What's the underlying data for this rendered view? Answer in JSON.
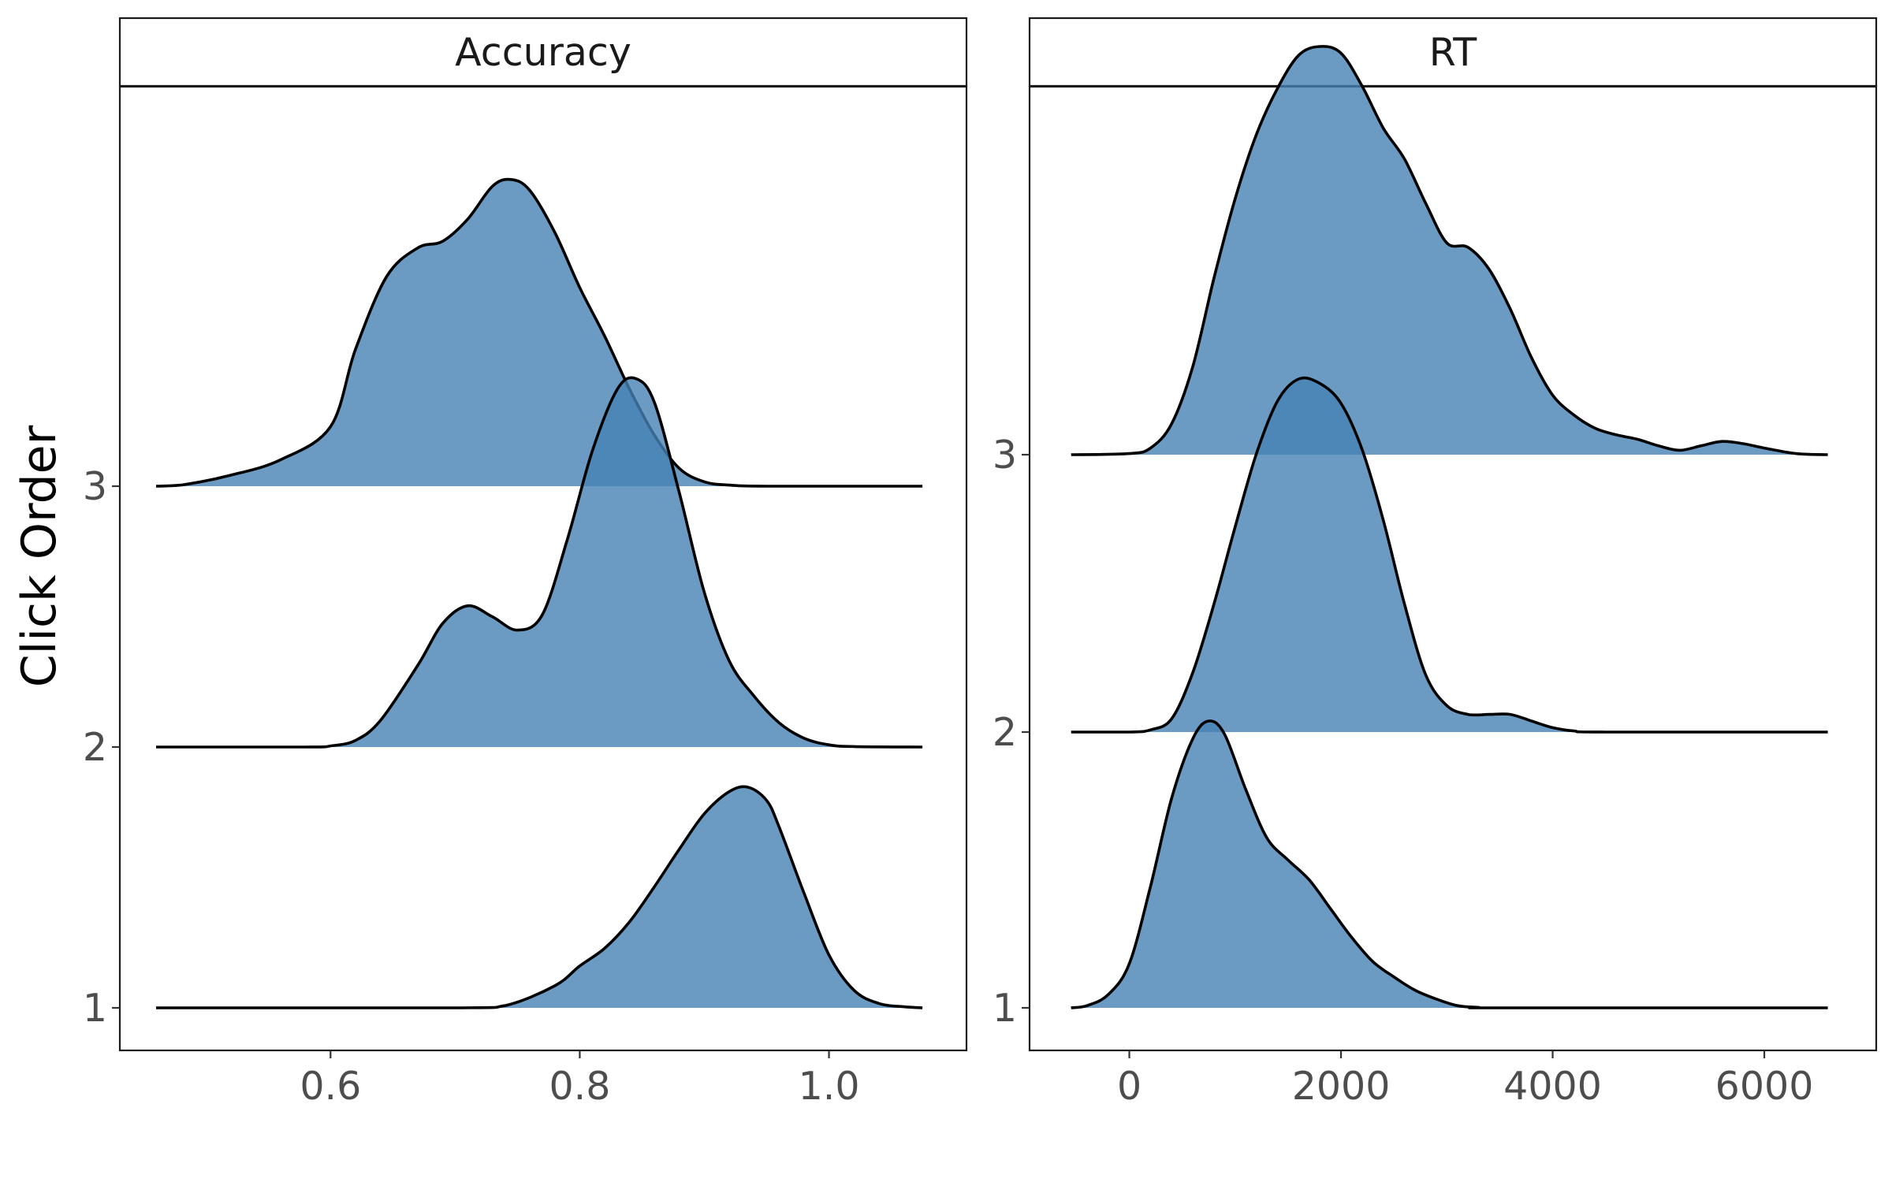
{
  "chart_data": {
    "type": "area",
    "ylabel": "Click Order",
    "y_categories": [
      "1",
      "2",
      "3"
    ],
    "fill_color": "#4682b4",
    "fill_opacity": 0.8,
    "line_color": "#000000",
    "panels": [
      {
        "strip": "Accuracy",
        "xlim": [
          0.46,
          1.08
        ],
        "xticks": [
          0.6,
          0.8,
          1.0
        ],
        "xtick_labels": [
          "0.6",
          "0.8",
          "1.0"
        ],
        "series": [
          {
            "name": "1",
            "density": [
              [
                0.46,
                0
              ],
              [
                0.7,
                0
              ],
              [
                0.74,
                0.01
              ],
              [
                0.78,
                0.1
              ],
              [
                0.8,
                0.19
              ],
              [
                0.82,
                0.27
              ],
              [
                0.84,
                0.39
              ],
              [
                0.86,
                0.55
              ],
              [
                0.88,
                0.72
              ],
              [
                0.9,
                0.88
              ],
              [
                0.92,
                0.98
              ],
              [
                0.935,
                1.0
              ],
              [
                0.95,
                0.94
              ],
              [
                0.96,
                0.82
              ],
              [
                0.98,
                0.52
              ],
              [
                1.0,
                0.24
              ],
              [
                1.02,
                0.08
              ],
              [
                1.04,
                0.02
              ],
              [
                1.06,
                0.005
              ],
              [
                1.075,
                0
              ]
            ]
          },
          {
            "name": "2",
            "density": [
              [
                0.46,
                0
              ],
              [
                0.58,
                0
              ],
              [
                0.6,
                0.005
              ],
              [
                0.62,
                0.03
              ],
              [
                0.64,
                0.12
              ],
              [
                0.67,
                0.37
              ],
              [
                0.69,
                0.56
              ],
              [
                0.71,
                0.64
              ],
              [
                0.73,
                0.59
              ],
              [
                0.75,
                0.53
              ],
              [
                0.77,
                0.6
              ],
              [
                0.79,
                0.94
              ],
              [
                0.81,
                1.34
              ],
              [
                0.83,
                1.62
              ],
              [
                0.845,
                1.67
              ],
              [
                0.86,
                1.56
              ],
              [
                0.88,
                1.15
              ],
              [
                0.9,
                0.7
              ],
              [
                0.92,
                0.39
              ],
              [
                0.94,
                0.23
              ],
              [
                0.96,
                0.11
              ],
              [
                0.98,
                0.04
              ],
              [
                1.0,
                0.01
              ],
              [
                1.02,
                0.002
              ],
              [
                1.075,
                0
              ]
            ]
          },
          {
            "name": "3",
            "density": [
              [
                0.46,
                0
              ],
              [
                0.48,
                0.005
              ],
              [
                0.52,
                0.05
              ],
              [
                0.56,
                0.12
              ],
              [
                0.6,
                0.27
              ],
              [
                0.62,
                0.62
              ],
              [
                0.645,
                0.95
              ],
              [
                0.67,
                1.08
              ],
              [
                0.69,
                1.11
              ],
              [
                0.71,
                1.21
              ],
              [
                0.73,
                1.36
              ],
              [
                0.745,
                1.39
              ],
              [
                0.76,
                1.34
              ],
              [
                0.78,
                1.15
              ],
              [
                0.8,
                0.9
              ],
              [
                0.82,
                0.68
              ],
              [
                0.84,
                0.44
              ],
              [
                0.86,
                0.23
              ],
              [
                0.88,
                0.08
              ],
              [
                0.9,
                0.02
              ],
              [
                0.92,
                0.005
              ],
              [
                0.95,
                0
              ],
              [
                1.075,
                0
              ]
            ]
          }
        ]
      },
      {
        "strip": "RT",
        "xlim": [
          -600,
          6700
        ],
        "xticks": [
          0,
          2000,
          4000,
          6000
        ],
        "xtick_labels": [
          "0",
          "2000",
          "4000",
          "6000"
        ],
        "series": [
          {
            "name": "1",
            "density": [
              [
                -550,
                0
              ],
              [
                -400,
                0.01
              ],
              [
                -200,
                0.06
              ],
              [
                0,
                0.2
              ],
              [
                200,
                0.55
              ],
              [
                400,
                0.95
              ],
              [
                600,
                1.22
              ],
              [
                750,
                1.3
              ],
              [
                900,
                1.24
              ],
              [
                1100,
                0.99
              ],
              [
                1300,
                0.77
              ],
              [
                1500,
                0.67
              ],
              [
                1700,
                0.58
              ],
              [
                1900,
                0.45
              ],
              [
                2100,
                0.32
              ],
              [
                2300,
                0.21
              ],
              [
                2500,
                0.14
              ],
              [
                2700,
                0.08
              ],
              [
                2900,
                0.04
              ],
              [
                3100,
                0.01
              ],
              [
                3300,
                0.002
              ],
              [
                3500,
                0
              ],
              [
                6600,
                0
              ]
            ]
          },
          {
            "name": "2",
            "density": [
              [
                -550,
                0
              ],
              [
                0,
                0
              ],
              [
                200,
                0.01
              ],
              [
                400,
                0.06
              ],
              [
                600,
                0.27
              ],
              [
                800,
                0.58
              ],
              [
                1000,
                0.93
              ],
              [
                1200,
                1.26
              ],
              [
                1400,
                1.5
              ],
              [
                1600,
                1.6
              ],
              [
                1800,
                1.58
              ],
              [
                2000,
                1.49
              ],
              [
                2200,
                1.28
              ],
              [
                2400,
                0.96
              ],
              [
                2600,
                0.58
              ],
              [
                2800,
                0.26
              ],
              [
                3000,
                0.12
              ],
              [
                3200,
                0.08
              ],
              [
                3400,
                0.08
              ],
              [
                3600,
                0.08
              ],
              [
                3800,
                0.05
              ],
              [
                4000,
                0.02
              ],
              [
                4200,
                0.005
              ],
              [
                4500,
                0
              ],
              [
                6600,
                0
              ]
            ]
          },
          {
            "name": "3",
            "density": [
              [
                -550,
                0
              ],
              [
                0,
                0.005
              ],
              [
                200,
                0.03
              ],
              [
                400,
                0.14
              ],
              [
                600,
                0.4
              ],
              [
                800,
                0.8
              ],
              [
                1000,
                1.16
              ],
              [
                1200,
                1.45
              ],
              [
                1400,
                1.66
              ],
              [
                1600,
                1.81
              ],
              [
                1800,
                1.85
              ],
              [
                2000,
                1.82
              ],
              [
                2200,
                1.67
              ],
              [
                2400,
                1.48
              ],
              [
                2600,
                1.34
              ],
              [
                2800,
                1.14
              ],
              [
                3000,
                0.96
              ],
              [
                3200,
                0.94
              ],
              [
                3400,
                0.84
              ],
              [
                3600,
                0.66
              ],
              [
                3800,
                0.44
              ],
              [
                4000,
                0.27
              ],
              [
                4200,
                0.18
              ],
              [
                4400,
                0.12
              ],
              [
                4600,
                0.09
              ],
              [
                4800,
                0.07
              ],
              [
                5000,
                0.04
              ],
              [
                5200,
                0.02
              ],
              [
                5400,
                0.04
              ],
              [
                5600,
                0.06
              ],
              [
                5800,
                0.05
              ],
              [
                6000,
                0.03
              ],
              [
                6300,
                0.005
              ],
              [
                6600,
                0
              ]
            ]
          }
        ]
      }
    ]
  }
}
